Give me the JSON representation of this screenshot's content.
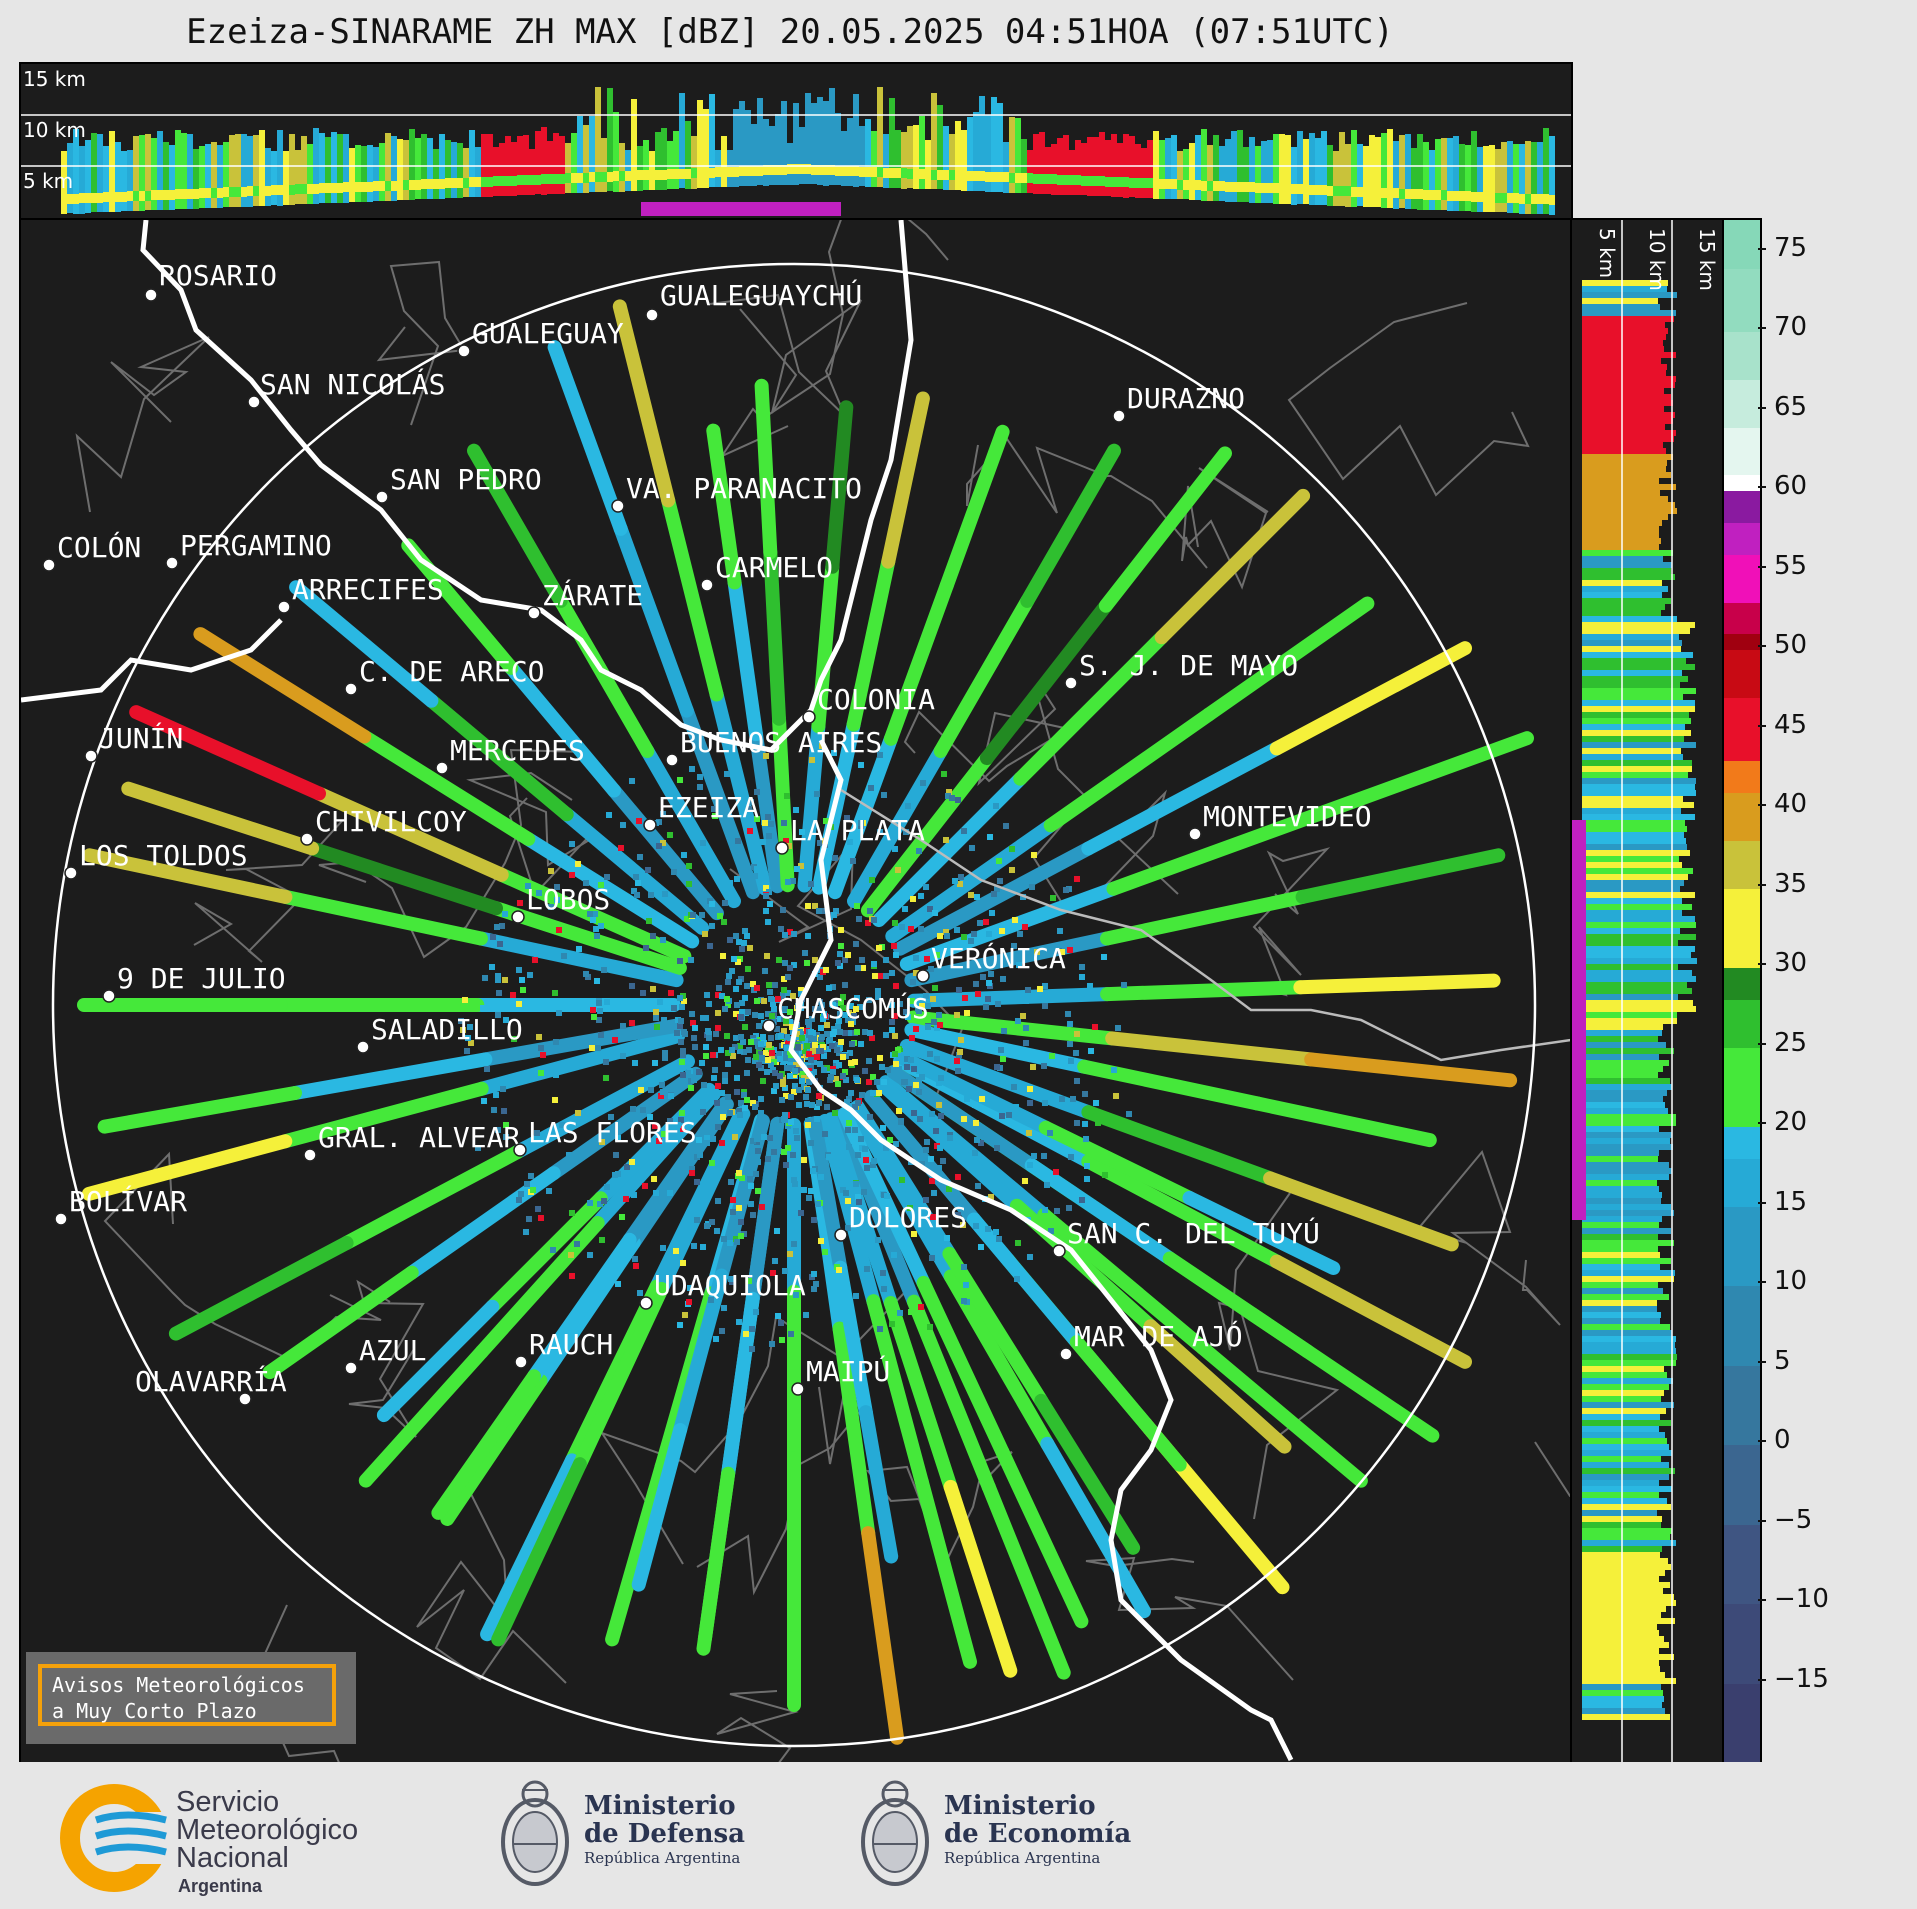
{
  "title": "Ezeiza-SINARAME ZH MAX [dBZ] 20.05.2025 04:51HOA (07:51UTC)",
  "top_panel": {
    "alt_labels": [
      "15 km",
      "10 km",
      "5 km"
    ]
  },
  "right_panel": {
    "alt_labels": [
      "5 km",
      "10 km",
      "15 km"
    ]
  },
  "cities": [
    {
      "name": "ROSARIO"
    },
    {
      "name": "GUALEGUAYCHÚ"
    },
    {
      "name": "GUALEGUAY"
    },
    {
      "name": "SAN NICOLÁS"
    },
    {
      "name": "DURAZNO"
    },
    {
      "name": "SAN PEDRO"
    },
    {
      "name": "VA. PARANACITO"
    },
    {
      "name": "COLÓN"
    },
    {
      "name": "PERGAMINO"
    },
    {
      "name": "CARMELO"
    },
    {
      "name": "ARRECIFES"
    },
    {
      "name": "ZÁRATE"
    },
    {
      "name": "S. J. DE MAYO"
    },
    {
      "name": "C. DE ARECO"
    },
    {
      "name": "COLONIA"
    },
    {
      "name": "JUNÍN"
    },
    {
      "name": "BUENOS AIRES"
    },
    {
      "name": "MERCEDES"
    },
    {
      "name": "EZEIZA"
    },
    {
      "name": "MONTEVIDEO"
    },
    {
      "name": "CHIVILCOY"
    },
    {
      "name": "LA PLATA"
    },
    {
      "name": "LOS TOLDOS"
    },
    {
      "name": "LOBOS"
    },
    {
      "name": "VERÓNICA"
    },
    {
      "name": "9 DE JULIO"
    },
    {
      "name": "CHASCOMÚS"
    },
    {
      "name": "SALADILLO"
    },
    {
      "name": "GRAL. ALVEAR"
    },
    {
      "name": "LAS FLORES"
    },
    {
      "name": "BOLÍVAR"
    },
    {
      "name": "DOLORES"
    },
    {
      "name": "SAN C. DEL TUYÚ"
    },
    {
      "name": "UDAQUIOLA"
    },
    {
      "name": "MAR DE AJÓ"
    },
    {
      "name": "AZUL"
    },
    {
      "name": "RAUCH"
    },
    {
      "name": "OLAVARRÍA"
    },
    {
      "name": "MAIPÚ"
    }
  ],
  "colorbar": {
    "unit": "dBZ",
    "ticks": [
      "75",
      "70",
      "65",
      "60",
      "55",
      "50",
      "45",
      "40",
      "35",
      "30",
      "25",
      "20",
      "15",
      "10",
      "5",
      "0",
      "−5",
      "−10",
      "−15"
    ],
    "min": -20,
    "max": 77,
    "colors": {
      "-20": "#3a3f6e",
      "-15": "#3d4a78",
      "-10": "#3f5582",
      "-5": "#3b6690",
      "0": "#36779e",
      "5": "#2f88b0",
      "10": "#2a99c4",
      "15": "#26aad6",
      "18": "#2ab8e2",
      "20": "#45e83a",
      "25": "#2fbf2f",
      "28": "#228a22",
      "30": "#f5f03a",
      "35": "#c9c23a",
      "38": "#d99c1e",
      "41": "#f27a1a",
      "43": "#e8102a",
      "47": "#c80a14",
      "50": "#a00010",
      "51": "#c8004a",
      "53": "#f010b8",
      "56": "#c020c0",
      "58": "#8a1aa0",
      "60": "#ffffff",
      "61": "#e4f6ef",
      "64": "#c6ecdd",
      "67": "#a8e2cb",
      "70": "#92dcbf",
      "74": "#86d8b8"
    }
  },
  "aviso": {
    "line1": "Avisos Meteorológicos",
    "line2": "a Muy Corto Plazo"
  },
  "footer": {
    "smn": {
      "line1": "Servicio",
      "line2": "Meteorológico",
      "line3": "Nacional",
      "line4": "Argentina"
    },
    "defensa": {
      "line1": "Ministerio",
      "line2": "de Defensa",
      "line3": "República Argentina"
    },
    "economia": {
      "line1": "Ministerio",
      "line2": "de Economía",
      "line3": "República Argentina"
    },
    "accent_colors": {
      "smn_orange": "#f5a300",
      "smn_blue": "#1e9ad6"
    }
  }
}
